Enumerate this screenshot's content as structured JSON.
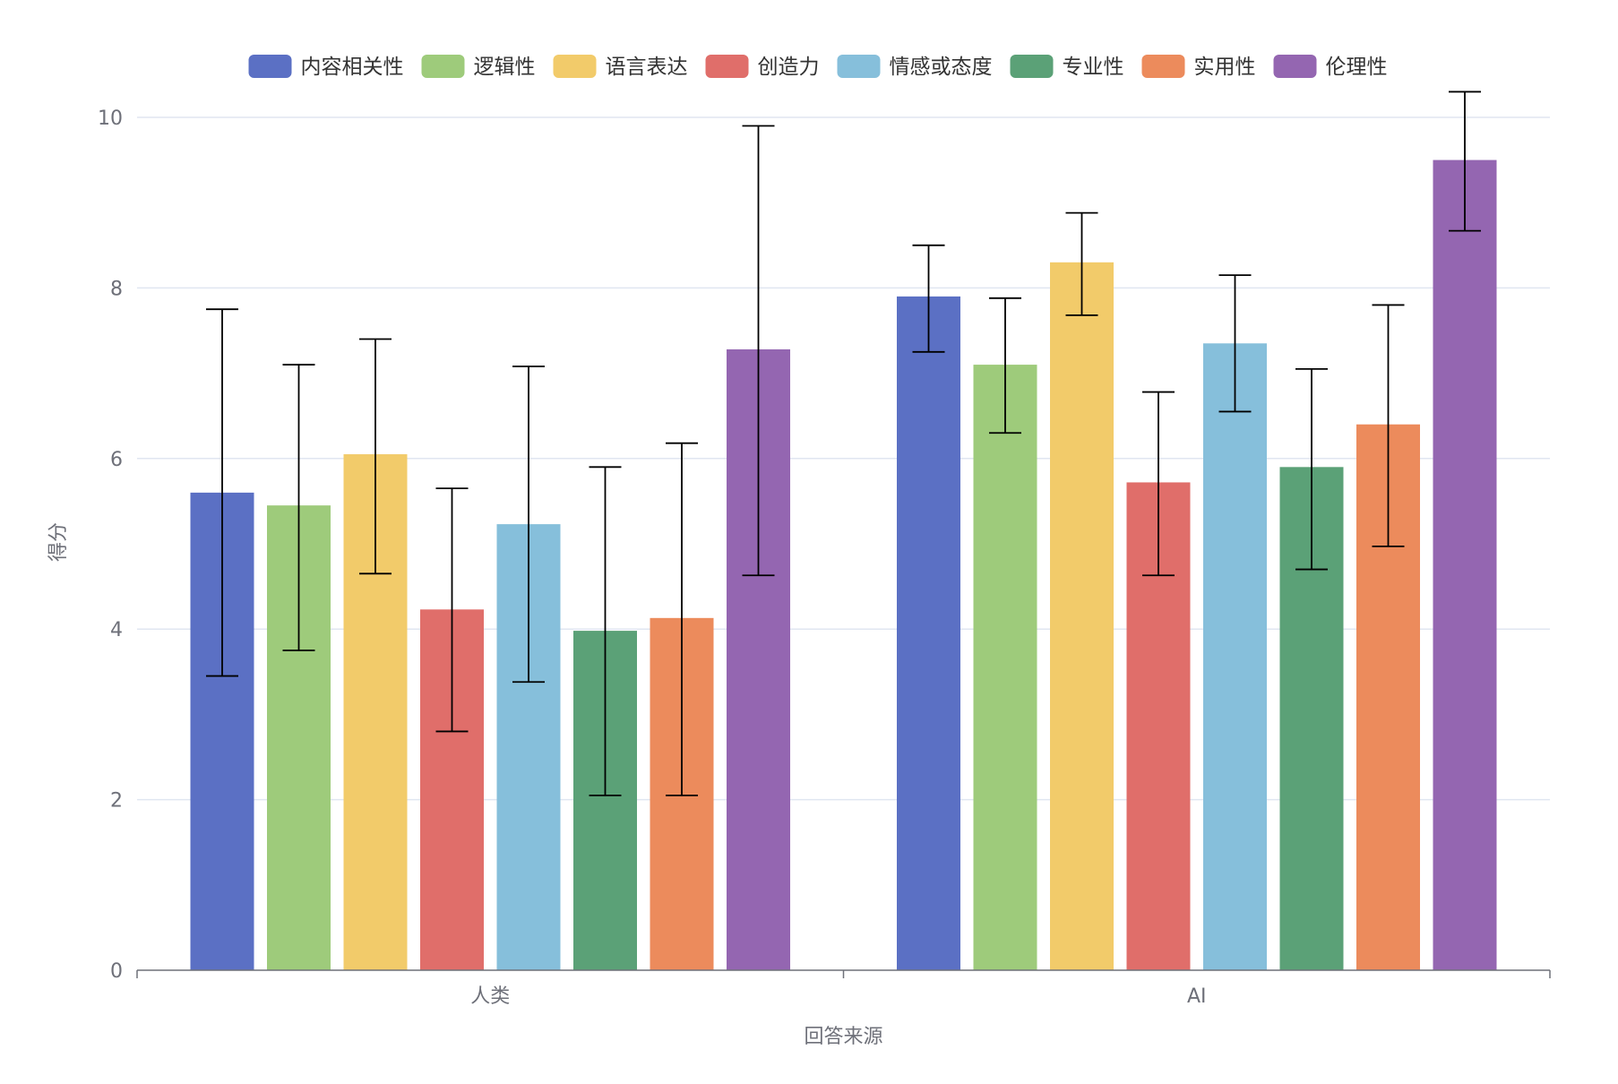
{
  "chart_data": {
    "type": "bar",
    "title": "",
    "xlabel": "回答来源",
    "ylabel": "得分",
    "ylim": [
      0,
      10
    ],
    "yticks": [
      0,
      2,
      4,
      6,
      8,
      10
    ],
    "grid": true,
    "legend_position": "top-center",
    "categories": [
      "人类",
      "AI"
    ],
    "series": [
      {
        "name": "内容相关性",
        "color": "#5b70c4",
        "values": [
          5.6,
          7.9
        ],
        "errors": [
          [
            3.45,
            7.75
          ],
          [
            7.25,
            8.5
          ]
        ]
      },
      {
        "name": "逻辑性",
        "color": "#9ecb7b",
        "values": [
          5.45,
          7.1
        ],
        "errors": [
          [
            3.75,
            7.1
          ],
          [
            6.3,
            7.88
          ]
        ]
      },
      {
        "name": "语言表达",
        "color": "#f2cb6a",
        "values": [
          6.05,
          8.3
        ],
        "errors": [
          [
            4.65,
            7.4
          ],
          [
            7.68,
            8.88
          ]
        ]
      },
      {
        "name": "创造力",
        "color": "#e06e6a",
        "values": [
          4.23,
          5.72
        ],
        "errors": [
          [
            2.8,
            5.65
          ],
          [
            4.63,
            6.78
          ]
        ]
      },
      {
        "name": "情感或态度",
        "color": "#86bfdb",
        "values": [
          5.23,
          7.35
        ],
        "errors": [
          [
            3.38,
            7.08
          ],
          [
            6.55,
            8.15
          ]
        ]
      },
      {
        "name": "专业性",
        "color": "#5ba177",
        "values": [
          3.98,
          5.9
        ],
        "errors": [
          [
            2.05,
            5.9
          ],
          [
            4.7,
            7.05
          ]
        ]
      },
      {
        "name": "实用性",
        "color": "#ec8b5c",
        "values": [
          4.13,
          6.4
        ],
        "errors": [
          [
            2.05,
            6.18
          ],
          [
            4.97,
            7.8
          ]
        ]
      },
      {
        "name": "伦理性",
        "color": "#9466b1",
        "values": [
          7.28,
          9.5
        ],
        "errors": [
          [
            4.63,
            9.9
          ],
          [
            8.67,
            10.3
          ]
        ]
      }
    ]
  }
}
